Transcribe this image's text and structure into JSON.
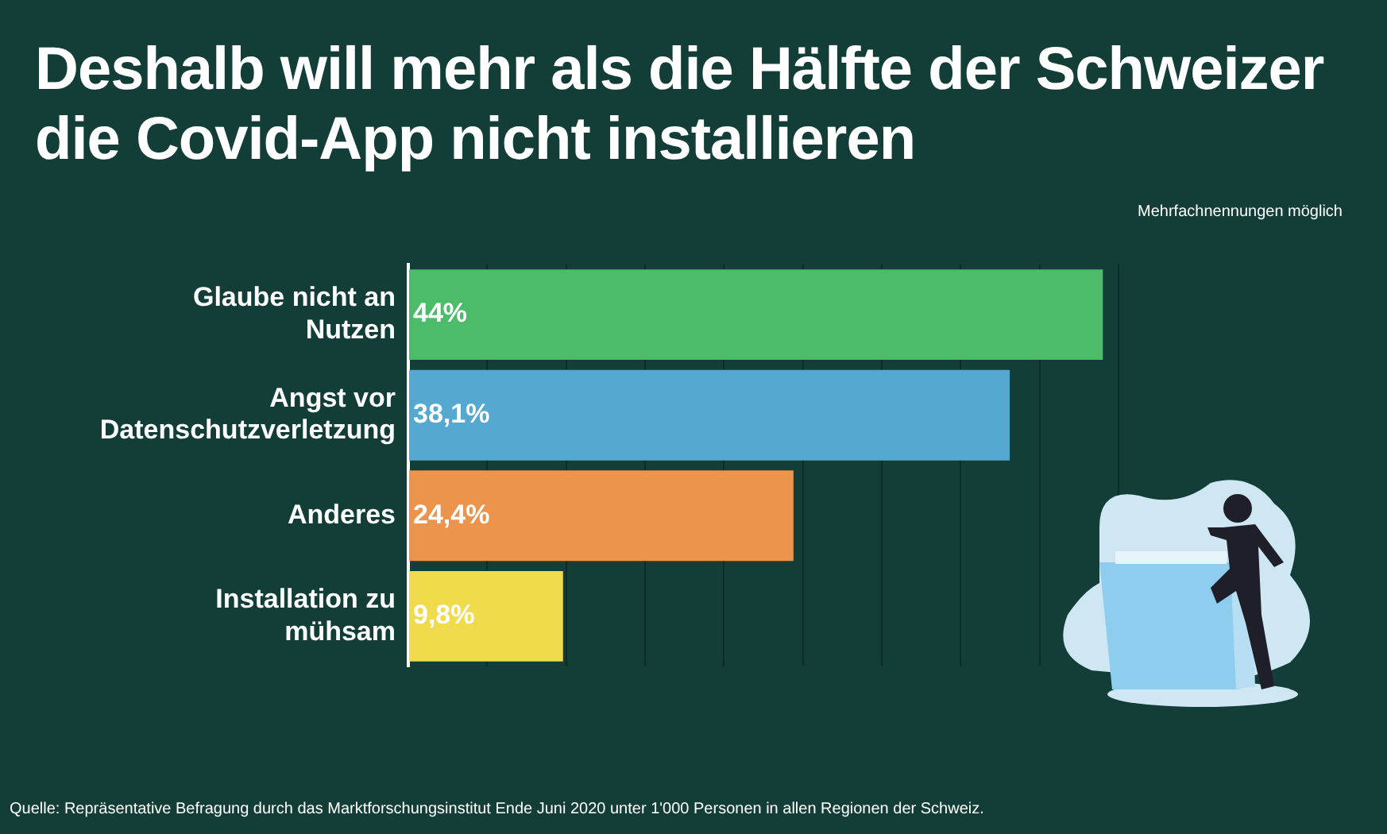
{
  "chart_data": {
    "type": "bar",
    "orientation": "horizontal",
    "title": "Deshalb will mehr als die Hälfte der Schweizer die Covid-App nicht installieren",
    "categories": [
      "Glaube nicht an Nutzen",
      "Angst vor Datenschutzverletzung",
      "Anderes",
      "Installation zu mühsam"
    ],
    "values": [
      44,
      38.1,
      24.4,
      9.8
    ],
    "colors": [
      "#4cbb6a",
      "#55a9d0",
      "#ec944b",
      "#efdb4b"
    ],
    "value_labels": [
      "44%",
      "38,1%",
      "24,4%",
      "9,8%"
    ],
    "xlim": [
      0,
      62
    ],
    "xticks": [
      {
        "value": 0,
        "label": null
      },
      {
        "value": 5,
        "label": null
      },
      {
        "value": 10,
        "label": null
      },
      {
        "value": 15,
        "label": null
      },
      {
        "value": 20,
        "label": null
      },
      {
        "value": 25,
        "label": null
      },
      {
        "value": 30,
        "label": null
      },
      {
        "value": 35,
        "label": null
      },
      {
        "value": 40,
        "label": null
      },
      {
        "value": 45,
        "label": null
      }
    ],
    "grid": "x",
    "tick_labels": "y",
    "annotations": [
      "Mehrfachnennungen möglich",
      "Quelle: Repräsentative Befragung durch das Marktforschungsinstitut Ende Juni 2020 unter 1'000 Personen in allen Regionen der Schweiz."
    ]
  }
}
